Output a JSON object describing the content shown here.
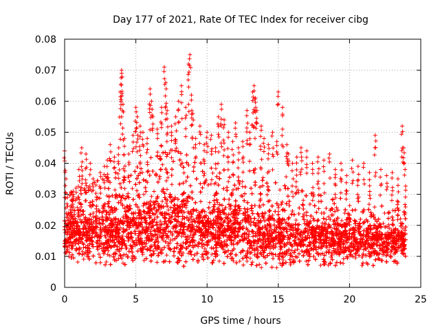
{
  "chart_data": {
    "type": "scatter",
    "title": "Day 177 of 2021, Rate Of TEC Index for receiver cibg",
    "xlabel": "GPS time / hours",
    "ylabel": "ROTI / TECUs",
    "xlim": [
      0,
      25
    ],
    "ylim": [
      0,
      0.08
    ],
    "xticks": [
      0,
      5,
      10,
      15,
      20,
      25
    ],
    "xtick_labels": [
      "0",
      "5",
      "10",
      "15",
      "20",
      "25"
    ],
    "yticks": [
      0,
      0.01,
      0.02,
      0.03,
      0.04,
      0.05,
      0.06,
      0.07,
      0.08
    ],
    "ytick_labels": [
      "0",
      "0.01",
      "0.02",
      "0.03",
      "0.04",
      "0.05",
      "0.06",
      "0.07",
      "0.08"
    ],
    "grid": true,
    "marker": "+",
    "marker_color": "#ff0000",
    "series": [
      {
        "name": "ROTI",
        "x": [
          0.0,
          0.1,
          0.2,
          0.3,
          0.4,
          0.5,
          0.6,
          0.8,
          1.0,
          1.2,
          1.5,
          1.8,
          2.0,
          2.2,
          2.5,
          2.8,
          3.0,
          3.2,
          3.5,
          3.8,
          3.9,
          4.0,
          4.0,
          4.1,
          4.2,
          4.5,
          4.8,
          5.0,
          5.1,
          5.3,
          5.5,
          5.8,
          6.0,
          6.1,
          6.2,
          6.5,
          6.8,
          7.0,
          7.1,
          7.2,
          7.5,
          7.8,
          8.0,
          8.2,
          8.5,
          8.7,
          8.8,
          8.9,
          9.0,
          9.2,
          9.5,
          9.8,
          10.0,
          10.3,
          10.6,
          10.8,
          11.0,
          11.2,
          11.5,
          11.8,
          12.0,
          12.2,
          12.5,
          12.8,
          13.0,
          13.2,
          13.3,
          13.4,
          13.5,
          13.8,
          14.0,
          14.3,
          14.6,
          14.9,
          15.0,
          15.3,
          15.6,
          15.7,
          16.0,
          16.3,
          16.6,
          17.0,
          17.4,
          17.8,
          18.2,
          18.6,
          19.0,
          19.4,
          19.8,
          20.2,
          20.6,
          21.0,
          21.4,
          21.8,
          22.2,
          22.6,
          23.0,
          23.4,
          23.7,
          23.8,
          23.9
        ],
        "y": [
          0.044,
          0.035,
          0.029,
          0.022,
          0.025,
          0.028,
          0.031,
          0.032,
          0.038,
          0.045,
          0.043,
          0.04,
          0.035,
          0.033,
          0.037,
          0.039,
          0.041,
          0.046,
          0.042,
          0.045,
          0.063,
          0.069,
          0.07,
          0.059,
          0.048,
          0.043,
          0.049,
          0.058,
          0.055,
          0.052,
          0.05,
          0.048,
          0.064,
          0.06,
          0.055,
          0.051,
          0.058,
          0.071,
          0.066,
          0.057,
          0.052,
          0.055,
          0.06,
          0.065,
          0.058,
          0.072,
          0.075,
          0.062,
          0.056,
          0.048,
          0.052,
          0.046,
          0.05,
          0.049,
          0.045,
          0.055,
          0.059,
          0.054,
          0.05,
          0.047,
          0.053,
          0.045,
          0.047,
          0.057,
          0.05,
          0.063,
          0.065,
          0.061,
          0.057,
          0.052,
          0.048,
          0.046,
          0.05,
          0.047,
          0.063,
          0.058,
          0.046,
          0.043,
          0.04,
          0.042,
          0.045,
          0.044,
          0.04,
          0.042,
          0.041,
          0.043,
          0.038,
          0.04,
          0.036,
          0.041,
          0.039,
          0.04,
          0.037,
          0.049,
          0.038,
          0.036,
          0.037,
          0.035,
          0.052,
          0.045,
          0.038
        ]
      }
    ],
    "band": {
      "description": "dense cloud of ROTI points between hour 0 and 24",
      "hours": [
        0,
        1,
        2,
        3,
        4,
        5,
        6,
        7,
        8,
        9,
        10,
        11,
        12,
        13,
        14,
        15,
        16,
        17,
        18,
        19,
        20,
        21,
        22,
        23,
        24
      ],
      "lower": [
        0.009,
        0.008,
        0.008,
        0.007,
        0.007,
        0.007,
        0.008,
        0.008,
        0.008,
        0.008,
        0.007,
        0.007,
        0.007,
        0.006,
        0.006,
        0.006,
        0.007,
        0.007,
        0.007,
        0.007,
        0.007,
        0.007,
        0.007,
        0.007,
        0.008
      ],
      "upper": [
        0.03,
        0.032,
        0.034,
        0.036,
        0.038,
        0.04,
        0.042,
        0.044,
        0.045,
        0.042,
        0.04,
        0.04,
        0.038,
        0.04,
        0.036,
        0.034,
        0.032,
        0.031,
        0.03,
        0.029,
        0.029,
        0.028,
        0.027,
        0.026,
        0.025
      ],
      "center": [
        0.017,
        0.017,
        0.018,
        0.018,
        0.019,
        0.019,
        0.02,
        0.02,
        0.02,
        0.019,
        0.019,
        0.019,
        0.018,
        0.018,
        0.017,
        0.017,
        0.016,
        0.016,
        0.016,
        0.016,
        0.016,
        0.016,
        0.015,
        0.015,
        0.015
      ]
    }
  }
}
